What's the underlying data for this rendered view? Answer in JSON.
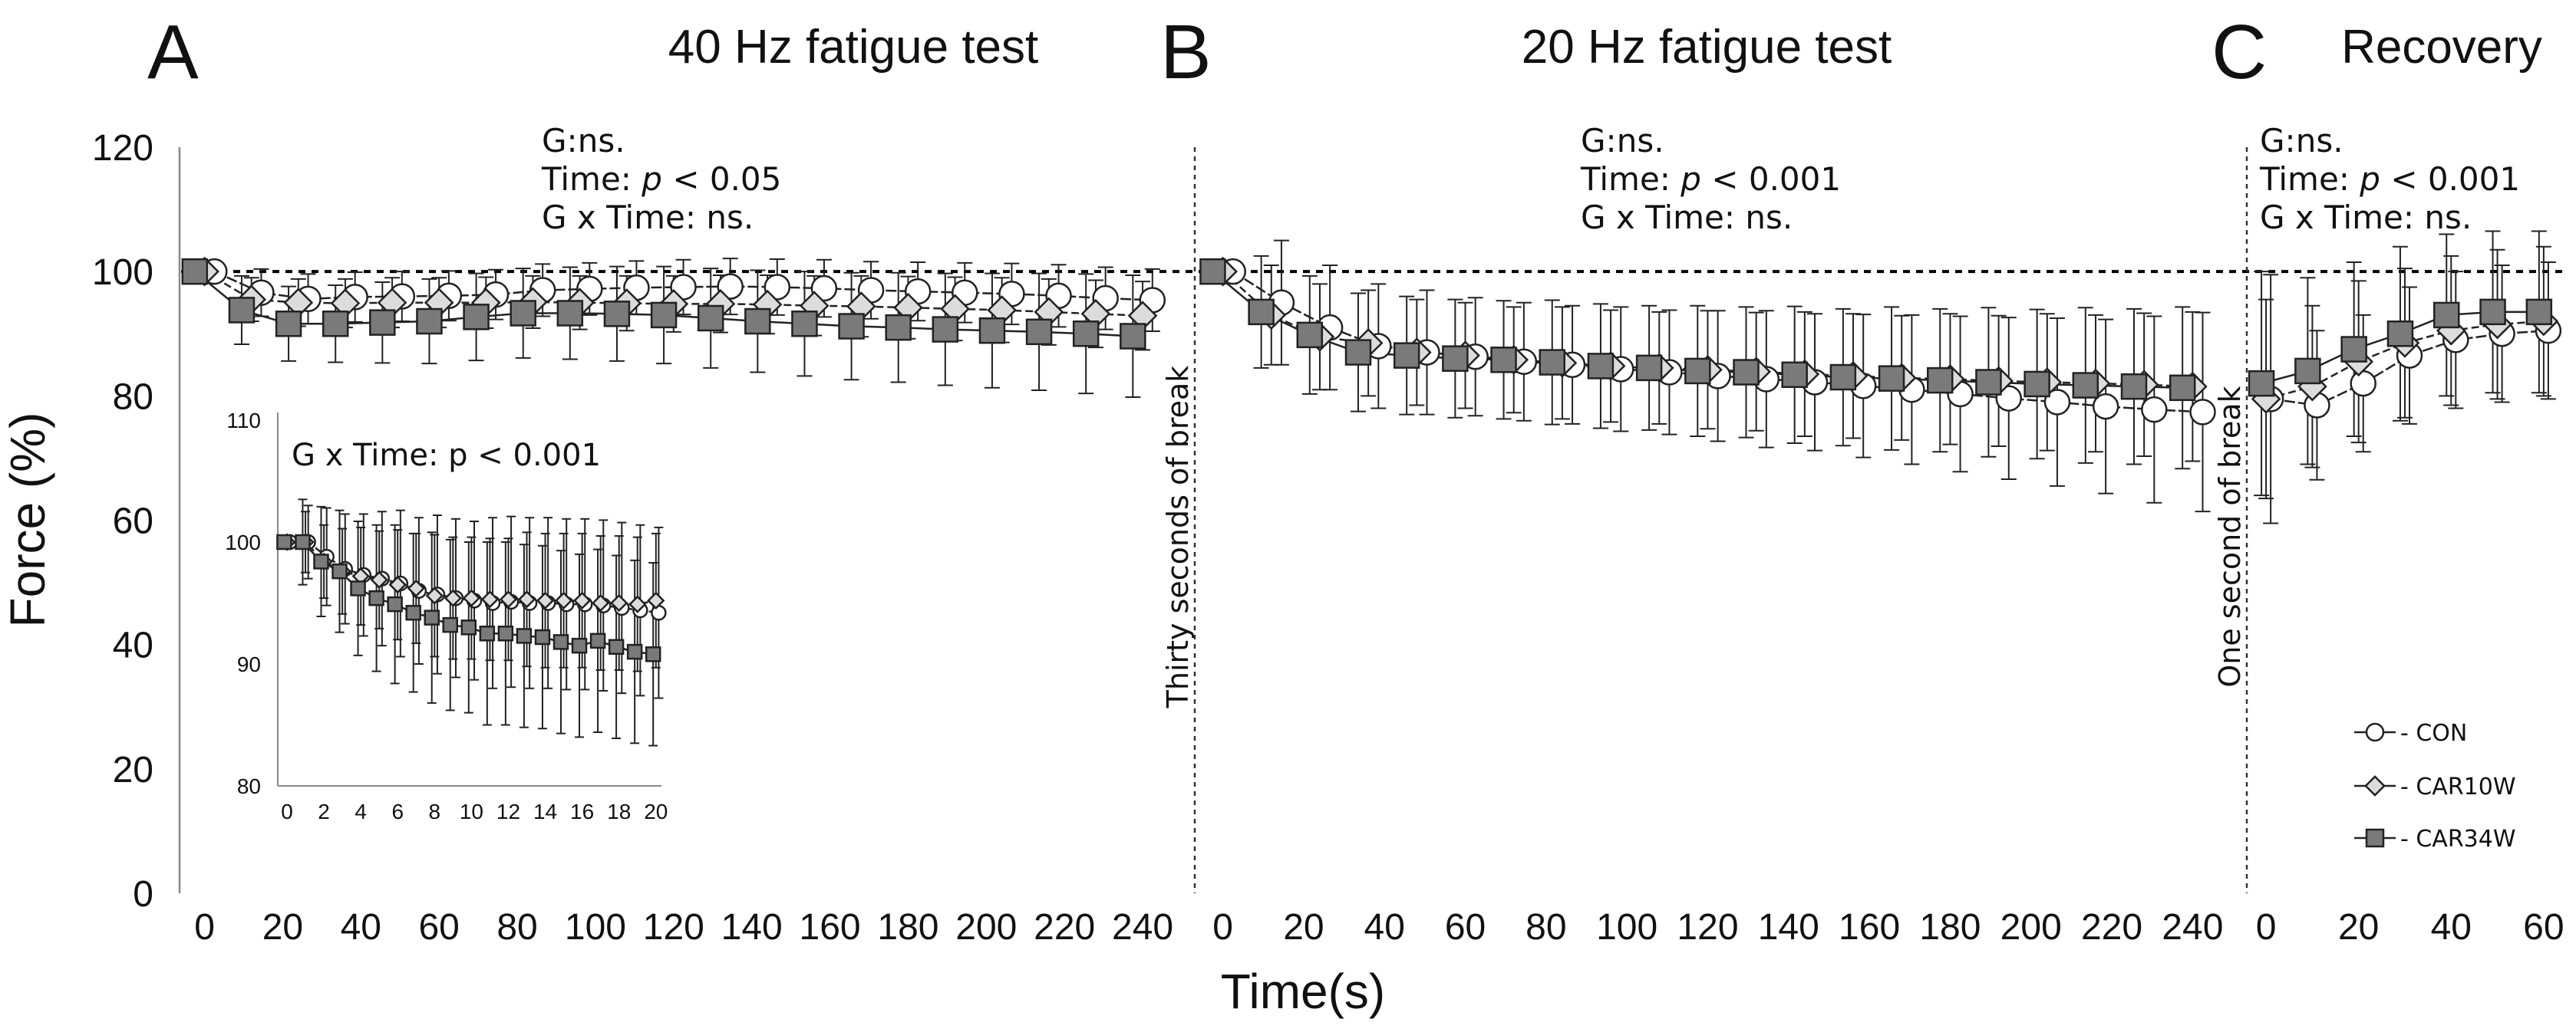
{
  "colors": {
    "con_fill": "#ffffff",
    "car10w_fill": "#dcdcdc",
    "car34w_fill": "#7a7a7a",
    "stroke": "#222222",
    "ref_line": "#000000"
  },
  "figure": {
    "y_axis_title": "Force (%)",
    "x_axis_title": "Time(s)",
    "y_ticks": [
      "0",
      "20",
      "40",
      "60",
      "80",
      "100",
      "120"
    ],
    "ylim": [
      0,
      120
    ],
    "reference_line": 100
  },
  "chart_data": [
    {
      "panel": "A",
      "title": "40 Hz fatigue test",
      "type": "line",
      "xlim": [
        -6,
        250
      ],
      "x_ticks": [
        "0",
        "20",
        "40",
        "60",
        "80",
        "100",
        "120",
        "140",
        "160",
        "180",
        "200",
        "220",
        "240"
      ],
      "stats": {
        "line1": "G:ns.",
        "line2_prefix": "Time: ",
        "line2_p": "p",
        "line2_suffix": " < 0.05",
        "line3": "G x Time: ns."
      },
      "x": [
        0,
        12,
        24,
        36,
        48,
        60,
        72,
        84,
        96,
        108,
        120,
        132,
        144,
        156,
        168,
        180,
        192,
        204,
        216,
        228,
        240
      ],
      "series": [
        {
          "name": "CON",
          "marker": "circle",
          "offset": 2.5,
          "values": [
            100,
            96.6,
            95.6,
            95.9,
            96.0,
            96.1,
            96.3,
            97.0,
            97.2,
            97.4,
            97.5,
            97.6,
            97.5,
            97.3,
            97.0,
            96.8,
            96.6,
            96.4,
            96.1,
            95.7,
            95.4
          ],
          "errors": [
            0,
            3.8,
            4,
            4,
            4,
            4,
            4,
            4.2,
            4.2,
            4.3,
            4.4,
            4.5,
            4.5,
            4.6,
            4.6,
            4.7,
            4.8,
            4.9,
            5,
            5,
            5
          ]
        },
        {
          "name": "CAR10W",
          "marker": "diamond",
          "offset": 0,
          "values": [
            100,
            95.5,
            95.0,
            94.9,
            95.0,
            95.0,
            95.0,
            95.1,
            95.0,
            94.9,
            94.8,
            94.8,
            94.7,
            94.5,
            94.4,
            94.2,
            94.0,
            93.8,
            93.5,
            93.2,
            92.9
          ],
          "errors": [
            0,
            3.5,
            3.8,
            3.9,
            4,
            4,
            4.1,
            4.2,
            4.3,
            4.4,
            4.5,
            4.6,
            4.7,
            4.8,
            4.9,
            5,
            5.1,
            5.2,
            5.3,
            5.4,
            5.5
          ]
        },
        {
          "name": "CAR34W",
          "marker": "square",
          "offset": -2.5,
          "values": [
            100,
            93.8,
            91.6,
            91.6,
            91.8,
            92.0,
            92.7,
            93.3,
            93.3,
            93.2,
            93.0,
            92.5,
            92.0,
            91.6,
            91.2,
            91.0,
            90.7,
            90.5,
            90.3,
            90.0,
            89.6
          ],
          "errors": [
            0,
            5.5,
            6,
            6.2,
            6.5,
            6.8,
            7,
            7.2,
            7.4,
            7.6,
            7.8,
            8,
            8.2,
            8.4,
            8.6,
            8.8,
            9,
            9.2,
            9.4,
            9.6,
            9.8
          ]
        }
      ]
    },
    {
      "panel": "B",
      "title": "20 Hz fatigue test",
      "type": "line",
      "xlim": [
        -6,
        250
      ],
      "x_ticks": [
        "0",
        "20",
        "40",
        "60",
        "80",
        "100",
        "120",
        "140",
        "160",
        "180",
        "200",
        "220",
        "240"
      ],
      "break_label": "Thirty seconds of break",
      "stats": {
        "line1": "G:ns.",
        "line2_prefix": "Time: ",
        "line2_p": "p",
        "line2_suffix": " < 0.001",
        "line3": "G x Time: ns."
      },
      "x": [
        0,
        12,
        24,
        36,
        48,
        60,
        72,
        84,
        96,
        108,
        120,
        132,
        144,
        156,
        168,
        180,
        192,
        204,
        216,
        228,
        240
      ],
      "series": [
        {
          "name": "CON",
          "marker": "circle",
          "offset": 2.5,
          "values": [
            100,
            95.0,
            91.0,
            88.0,
            87.0,
            86.3,
            85.5,
            85.0,
            84.3,
            83.8,
            83.2,
            82.7,
            82.2,
            81.6,
            81.0,
            80.3,
            79.6,
            79.0,
            78.3,
            77.8,
            77.4
          ],
          "errors": [
            0,
            10,
            10,
            10,
            10,
            9.5,
            9.5,
            9.5,
            10,
            10,
            10.5,
            11,
            11,
            11.5,
            12,
            12.5,
            13,
            13.5,
            14,
            15,
            16
          ]
        },
        {
          "name": "CAR10W",
          "marker": "diamond",
          "offset": 0,
          "values": [
            100,
            93.0,
            89.5,
            88.5,
            87.0,
            86.5,
            85.8,
            85.3,
            84.8,
            84.5,
            84.2,
            83.9,
            83.5,
            83.2,
            82.9,
            82.7,
            82.4,
            82.2,
            82.0,
            81.8,
            81.5
          ],
          "errors": [
            0,
            8,
            8.5,
            8.5,
            8.5,
            8.5,
            8.5,
            9,
            9,
            9,
            9.5,
            9.5,
            10,
            10,
            10,
            10.5,
            10.5,
            11,
            11,
            11.5,
            12
          ]
        },
        {
          "name": "CAR34W",
          "marker": "square",
          "offset": -2.5,
          "values": [
            100,
            93.5,
            89.8,
            87.0,
            86.5,
            86.0,
            85.8,
            85.4,
            84.8,
            84.5,
            84.0,
            83.8,
            83.4,
            83.0,
            82.8,
            82.5,
            82.2,
            81.9,
            81.7,
            81.5,
            81.3
          ],
          "errors": [
            0,
            9,
            9.5,
            9.5,
            9.5,
            9.5,
            9.5,
            10,
            10,
            10,
            10.5,
            10.5,
            11,
            11,
            11.5,
            11.5,
            12,
            12,
            12.5,
            12.5,
            13
          ]
        }
      ]
    },
    {
      "panel": "C",
      "title": "Recovery",
      "type": "line",
      "xlim": [
        -3.5,
        65
      ],
      "x_ticks": [
        "0",
        "20",
        "40",
        "60"
      ],
      "break_label": "One second of break",
      "stats": {
        "line1": "G:ns.",
        "line2_prefix": "Time: ",
        "line2_p": "p",
        "line2_suffix": " < 0.001",
        "line3": "G x Time: ns."
      },
      "x": [
        0,
        10,
        20,
        30,
        40,
        50,
        60
      ],
      "series": [
        {
          "name": "CON",
          "marker": "circle",
          "offset": 1,
          "values": [
            79.5,
            78.5,
            82.0,
            86.5,
            89.0,
            90.0,
            90.5
          ],
          "errors": [
            20,
            12,
            11,
            11,
            11,
            11,
            11
          ]
        },
        {
          "name": "CAR10W",
          "marker": "diamond",
          "offset": 0,
          "values": [
            79.5,
            81.5,
            85.5,
            88.5,
            90.5,
            91.5,
            92.0
          ],
          "errors": [
            16,
            13,
            13,
            12,
            12,
            12,
            12
          ]
        },
        {
          "name": "CAR34W",
          "marker": "square",
          "offset": -1,
          "values": [
            82.0,
            84.0,
            87.5,
            90.0,
            93.0,
            93.5,
            93.5
          ],
          "errors": [
            18,
            15,
            14,
            14,
            13,
            13,
            13
          ]
        }
      ]
    },
    {
      "panel": "A-inset",
      "type": "line",
      "xlim": [
        -0.5,
        20.3
      ],
      "ylim": [
        80,
        110
      ],
      "x_ticks": [
        "0",
        "2",
        "4",
        "6",
        "8",
        "10",
        "12",
        "14",
        "16",
        "18",
        "20"
      ],
      "y_ticks": [
        "80",
        "90",
        "100",
        "110"
      ],
      "stats": {
        "line1": "G x Time: p < 0.001"
      },
      "x": [
        0,
        1,
        2,
        3,
        4,
        5,
        6,
        7,
        8,
        9,
        10,
        11,
        12,
        13,
        14,
        15,
        16,
        17,
        18,
        19,
        20
      ],
      "series": [
        {
          "name": "CON",
          "marker": "circle",
          "offset": 0.15,
          "values": [
            100,
            100,
            98.8,
            97.8,
            97.3,
            97.0,
            96.6,
            96.0,
            95.7,
            95.4,
            95.2,
            95.0,
            95.1,
            95.0,
            95.0,
            94.9,
            94.9,
            94.8,
            94.6,
            94.4,
            94.2
          ],
          "errors": [
            0,
            3,
            4,
            4.5,
            5,
            5.5,
            6,
            6,
            6.5,
            6.5,
            6.5,
            7,
            7,
            7,
            7,
            7,
            7,
            7,
            7,
            7,
            7
          ]
        },
        {
          "name": "CAR10W",
          "marker": "diamond",
          "offset": 0,
          "values": [
            100,
            100,
            98.4,
            97.6,
            97.2,
            96.9,
            96.5,
            96.2,
            95.6,
            95.4,
            95.4,
            95.3,
            95.3,
            95.3,
            95.2,
            95.2,
            95.2,
            95.0,
            95.0,
            94.9,
            95.2
          ],
          "errors": [
            0,
            2.5,
            3,
            3.5,
            4,
            4,
            4.5,
            4.5,
            5,
            5,
            5,
            5,
            5,
            5.5,
            5.5,
            5.5,
            5.5,
            5.5,
            5.5,
            5.5,
            5.5
          ]
        },
        {
          "name": "CAR34W",
          "marker": "square",
          "offset": -0.15,
          "values": [
            100,
            100,
            98.4,
            97.6,
            96.2,
            95.4,
            94.9,
            94.2,
            93.8,
            93.2,
            93.0,
            92.5,
            92.5,
            92.3,
            92.2,
            91.8,
            91.5,
            91.9,
            91.4,
            91.0,
            90.8
          ],
          "errors": [
            0,
            3.5,
            4.5,
            5,
            5.5,
            6,
            6.5,
            6.5,
            7,
            7,
            7,
            7.5,
            7.5,
            7.5,
            7.5,
            7.5,
            7.5,
            7.5,
            7.5,
            7.5,
            7.5
          ]
        }
      ]
    }
  ],
  "legend": {
    "position": "bottom-right",
    "items": [
      {
        "label": "CON",
        "marker": "circle"
      },
      {
        "label": "CAR10W",
        "marker": "diamond"
      },
      {
        "label": "CAR34W",
        "marker": "square"
      }
    ]
  }
}
